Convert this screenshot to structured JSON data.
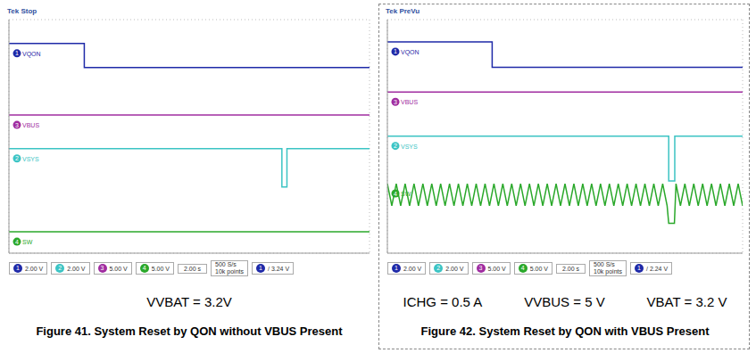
{
  "chart_data": [
    {
      "type": "line",
      "header": "Tek Stop",
      "title": "Figure 41. System Reset by QON without VBUS Present",
      "conditions": [
        "VVBAT = 3.2V"
      ],
      "xlim": [
        0,
        10
      ],
      "ylim": [
        0,
        8
      ],
      "xticks": [
        0,
        1,
        2,
        3,
        4,
        5,
        6,
        7,
        8,
        9,
        10
      ],
      "yticks": [
        0,
        1,
        2,
        3,
        4,
        5,
        6,
        7,
        8
      ],
      "grid": true,
      "tick_labels": false,
      "series": [
        {
          "name": "VQON",
          "channel": 1,
          "color": "#1f2aa8",
          "x": [
            0,
            2.09,
            2.09,
            10
          ],
          "values": [
            7.18,
            7.18,
            6.36,
            6.36
          ]
        },
        {
          "name": "VBUS",
          "channel": 3,
          "color": "#a02ca0",
          "x": [
            0,
            10
          ],
          "values": [
            4.73,
            4.73
          ]
        },
        {
          "name": "VSYS",
          "channel": 2,
          "color": "#3cc4c4",
          "x": [
            0,
            7.57,
            7.57,
            7.71,
            7.71,
            10
          ],
          "values": [
            3.58,
            3.58,
            2.27,
            2.27,
            3.58,
            3.58
          ]
        },
        {
          "name": "SW",
          "channel": 4,
          "color": "#2aa82a",
          "x": [
            0,
            10
          ],
          "values": [
            0.73,
            0.73
          ]
        }
      ],
      "scales": [
        {
          "channel": 1,
          "label": "2.00 V"
        },
        {
          "channel": 2,
          "label": "2.00 V"
        },
        {
          "channel": 3,
          "label": "5.00 V"
        },
        {
          "channel": 4,
          "label": "5.00 V"
        }
      ],
      "timebase": "2.00 s",
      "acquisition": [
        "500 S/s",
        "10k points"
      ],
      "trigger": {
        "channel": 1,
        "label": "3.24 V"
      }
    },
    {
      "type": "line",
      "header": "Tek PreVu",
      "title": "Figure 42. System Reset by QON with VBUS Present",
      "conditions": [
        "ICHG = 0.5 A",
        "VVBUS = 5 V",
        "VBAT = 3.2 V"
      ],
      "xlim": [
        0,
        10
      ],
      "ylim": [
        0,
        8
      ],
      "xticks": [
        0,
        1,
        2,
        3,
        4,
        5,
        6,
        7,
        8,
        9,
        10
      ],
      "yticks": [
        0,
        1,
        2,
        3,
        4,
        5,
        6,
        7,
        8
      ],
      "grid": true,
      "tick_labels": false,
      "series": [
        {
          "name": "VQON",
          "channel": 1,
          "color": "#1f2aa8",
          "x": [
            0,
            2.95,
            2.95,
            10
          ],
          "values": [
            7.24,
            7.24,
            6.37,
            6.37
          ]
        },
        {
          "name": "VBUS",
          "channel": 3,
          "color": "#a02ca0",
          "x": [
            0,
            10
          ],
          "values": [
            5.52,
            5.52
          ]
        },
        {
          "name": "VSYS",
          "channel": 2,
          "color": "#3cc4c4",
          "x": [
            0,
            7.92,
            7.92,
            8.09,
            8.09,
            10
          ],
          "values": [
            4.01,
            4.01,
            2.47,
            2.47,
            4.01,
            4.01
          ]
        },
        {
          "name": "SW",
          "channel": 4,
          "color": "#2aa82a",
          "x": [
            0,
            0.125,
            0.25,
            0.375,
            0.5,
            0.625,
            0.75,
            0.875,
            1,
            1.125,
            1.25,
            1.375,
            1.5,
            1.625,
            1.75,
            1.875,
            2,
            2.125,
            2.25,
            2.375,
            2.5,
            2.625,
            2.75,
            2.875,
            3,
            3.125,
            3.25,
            3.375,
            3.5,
            3.625,
            3.75,
            3.875,
            4,
            4.125,
            4.25,
            4.375,
            4.5,
            4.625,
            4.75,
            4.875,
            5,
            5.125,
            5.25,
            5.375,
            5.5,
            5.625,
            5.75,
            5.875,
            6,
            6.125,
            6.25,
            6.375,
            6.5,
            6.625,
            6.75,
            6.875,
            7,
            7.125,
            7.25,
            7.375,
            7.5,
            7.625,
            7.75,
            7.875,
            7.92,
            8.08,
            8.125,
            8.25,
            8.375,
            8.5,
            8.625,
            8.75,
            8.875,
            9,
            9.125,
            9.25,
            9.375,
            9.5,
            9.625,
            9.75,
            9.875,
            10
          ],
          "values": [
            2.38,
            1.62,
            2.38,
            1.62,
            2.38,
            1.62,
            2.38,
            1.62,
            2.38,
            1.62,
            2.38,
            1.62,
            2.38,
            1.62,
            2.38,
            1.62,
            2.38,
            1.62,
            2.38,
            1.62,
            2.38,
            1.62,
            2.38,
            1.62,
            2.38,
            1.62,
            2.38,
            1.62,
            2.38,
            1.62,
            2.38,
            1.62,
            2.38,
            1.62,
            2.38,
            1.62,
            2.38,
            1.62,
            2.38,
            1.62,
            2.38,
            1.62,
            2.38,
            1.62,
            2.38,
            1.62,
            2.38,
            1.62,
            2.38,
            1.62,
            2.38,
            1.62,
            2.38,
            1.62,
            2.38,
            1.62,
            2.38,
            1.62,
            2.38,
            1.62,
            2.38,
            1.62,
            2.38,
            1.62,
            1.02,
            1.02,
            2.38,
            1.62,
            2.38,
            1.62,
            2.38,
            1.62,
            2.38,
            1.62,
            2.38,
            1.62,
            2.38,
            1.62,
            2.38,
            1.62,
            2.38,
            1.62
          ]
        }
      ],
      "scales": [
        {
          "channel": 1,
          "label": "2.00 V"
        },
        {
          "channel": 2,
          "label": "2.00 V"
        },
        {
          "channel": 3,
          "label": "5.00 V"
        },
        {
          "channel": 4,
          "label": "5.00 V"
        }
      ],
      "timebase": "2.00 s",
      "acquisition": [
        "500 S/s",
        "10k points"
      ],
      "trigger": {
        "channel": 1,
        "label": "2.24 V"
      }
    }
  ]
}
